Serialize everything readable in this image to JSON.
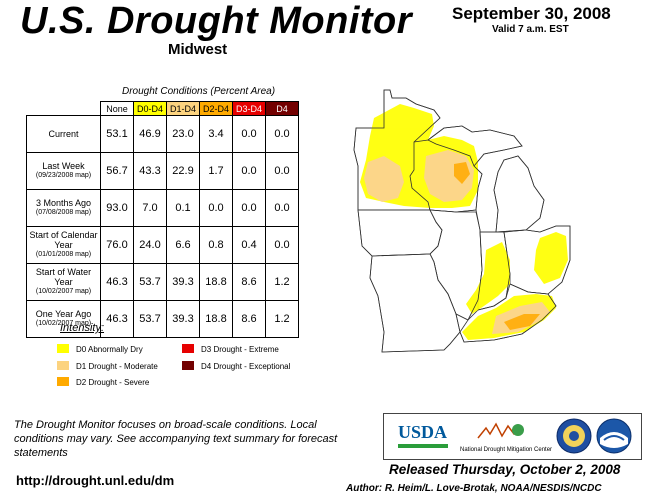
{
  "header": {
    "title": "U.S. Drought Monitor",
    "region": "Midwest",
    "date": "September 30, 2008",
    "valid": "Valid 7 a.m. EST"
  },
  "table": {
    "caption": "Drought Conditions (Percent Area)",
    "columns": [
      "None",
      "D0-D4",
      "D1-D4",
      "D2-D4",
      "D3-D4",
      "D4"
    ],
    "rows": [
      {
        "label": "Current",
        "sub": "",
        "values": [
          "53.1",
          "46.9",
          "23.0",
          "3.4",
          "0.0",
          "0.0"
        ]
      },
      {
        "label": "Last Week",
        "sub": "(09/23/2008 map)",
        "values": [
          "56.7",
          "43.3",
          "22.9",
          "1.7",
          "0.0",
          "0.0"
        ]
      },
      {
        "label": "3 Months Ago",
        "sub": "(07/08/2008 map)",
        "values": [
          "93.0",
          "7.0",
          "0.1",
          "0.0",
          "0.0",
          "0.0"
        ]
      },
      {
        "label": "Start of Calendar Year",
        "sub": "(01/01/2008 map)",
        "values": [
          "76.0",
          "24.0",
          "6.6",
          "0.8",
          "0.4",
          "0.0"
        ]
      },
      {
        "label": "Start of Water Year",
        "sub": "(10/02/2007 map)",
        "values": [
          "46.3",
          "53.7",
          "39.3",
          "18.8",
          "8.6",
          "1.2"
        ]
      },
      {
        "label": "One Year Ago",
        "sub": "(10/02/2007 map)",
        "values": [
          "46.3",
          "53.7",
          "39.3",
          "18.8",
          "8.6",
          "1.2"
        ]
      }
    ]
  },
  "legend": {
    "title": "Intensity:",
    "items": [
      {
        "label": "D0 Abnormally Dry",
        "color": "#FFFF00"
      },
      {
        "label": "D1 Drought - Moderate",
        "color": "#FCD37F"
      },
      {
        "label": "D2 Drought - Severe",
        "color": "#FFAA00"
      },
      {
        "label": "D3 Drought - Extreme",
        "color": "#E60000"
      },
      {
        "label": "D4 Drought - Exceptional",
        "color": "#730000"
      }
    ]
  },
  "footer": {
    "note": "The Drought Monitor focuses on broad-scale conditions. Local conditions may vary. See accompanying text summary for forecast statements",
    "url": "http://drought.unl.edu/dm",
    "released": "Released Thursday, October 2, 2008",
    "author": "Author: R. Heim/L. Love-Brotak, NOAA/NESDIS/NCDC"
  },
  "logos": {
    "usda": "USDA",
    "ndmc": "National Drought Mitigation Center"
  }
}
